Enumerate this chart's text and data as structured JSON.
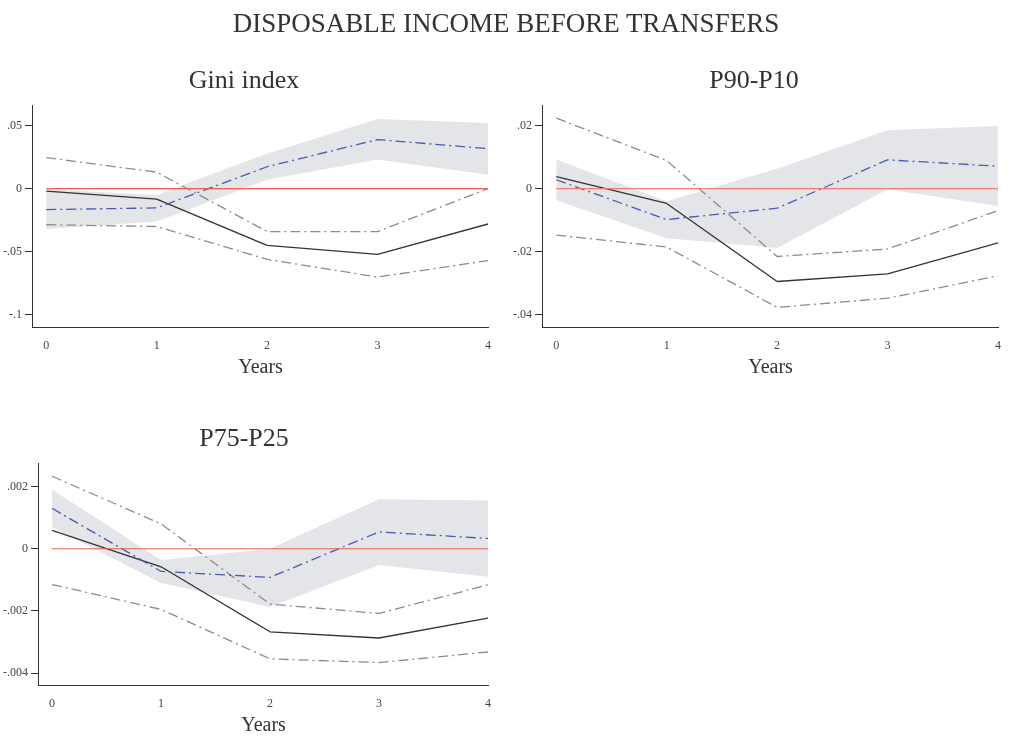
{
  "chart_data": [
    {
      "type": "line",
      "title": "DISPOSABLE INCOME BEFORE TRANSFERS",
      "subtitle": "Gini index",
      "xlabel": "Years",
      "x": [
        0,
        1,
        2,
        3,
        4
      ],
      "xlim": [
        -0.12,
        4
      ],
      "xticks": [
        0,
        1,
        2,
        3,
        4
      ],
      "ylim": [
        -0.11,
        0.066
      ],
      "yticks": [
        {
          "value": -0.1,
          "label": "-.1"
        },
        {
          "value": -0.05,
          "label": "-.05"
        },
        {
          "value": 0,
          "label": "0"
        },
        {
          "value": 0.05,
          "label": ".05"
        }
      ],
      "grid": false,
      "legend": false,
      "marker": "none",
      "ref_lines": [
        {
          "axis": "y",
          "value": 0,
          "color": "#e8604c"
        }
      ],
      "series": [
        {
          "color": "#4a5ab0",
          "line_style": "dashed",
          "values": [
            -0.0166,
            -0.0153,
            0.0173,
            0.0388,
            0.0316
          ],
          "lower": [
            -0.032,
            -0.026,
            0.007,
            0.023,
            0.011
          ],
          "upper": [
            -0.0005,
            -0.005,
            0.0276,
            0.055,
            0.052
          ]
        },
        {
          "color": "#8c8c8c",
          "line_style": "dashed",
          "values": [
            0.0245,
            0.013,
            -0.034,
            -0.034,
            0.0
          ]
        },
        {
          "color": "#8c8c8c",
          "line_style": "dashed",
          "values": [
            -0.0286,
            -0.03,
            -0.056,
            -0.07,
            -0.057
          ]
        },
        {
          "color": "#333333",
          "line_style": "solid",
          "values": [
            -0.002,
            -0.0084,
            -0.045,
            -0.052,
            -0.028
          ]
        }
      ]
    },
    {
      "type": "line",
      "title": "P90-P10",
      "xlabel": "Years",
      "x": [
        0,
        1,
        2,
        3,
        4
      ],
      "xlim": [
        -0.12,
        4
      ],
      "xticks": [
        0,
        1,
        2,
        3,
        4
      ],
      "ylim": [
        -0.044,
        0.0264
      ],
      "yticks": [
        {
          "value": -0.04,
          "label": "-.04"
        },
        {
          "value": -0.02,
          "label": "-.02"
        },
        {
          "value": 0,
          "label": "0"
        },
        {
          "value": 0.02,
          "label": ".02"
        }
      ],
      "grid": false,
      "legend": false,
      "marker": "none",
      "ref_lines": [
        {
          "axis": "y",
          "value": 0,
          "color": "#f08070"
        }
      ],
      "series": [
        {
          "color": "#4a5ab0",
          "line_style": "dashed",
          "values": [
            0.0028,
            -0.0098,
            -0.0062,
            0.0091,
            0.0071
          ],
          "lower": [
            -0.0037,
            -0.0157,
            -0.0188,
            -0.0002,
            -0.0055
          ],
          "upper": [
            0.0092,
            -0.004,
            0.0063,
            0.0185,
            0.0198
          ]
        },
        {
          "color": "#8c8c8c",
          "line_style": "dashed",
          "values": [
            0.0223,
            0.0089,
            -0.0215,
            -0.0191,
            -0.007
          ]
        },
        {
          "color": "#8c8c8c",
          "line_style": "dashed",
          "values": [
            -0.0147,
            -0.0185,
            -0.0376,
            -0.0347,
            -0.0276
          ]
        },
        {
          "color": "#333333",
          "line_style": "solid",
          "values": [
            0.0038,
            -0.0047,
            -0.0294,
            -0.027,
            -0.0172
          ]
        }
      ]
    },
    {
      "type": "line",
      "title": "P75-P25",
      "xlabel": "Years",
      "x": [
        0,
        1,
        2,
        3,
        4
      ],
      "xlim": [
        -0.12,
        4
      ],
      "xticks": [
        0,
        1,
        2,
        3,
        4
      ],
      "ylim": [
        -0.0044,
        0.00275
      ],
      "yticks": [
        {
          "value": -0.004,
          "label": "-.004"
        },
        {
          "value": -0.002,
          "label": "-.002"
        },
        {
          "value": 0,
          "label": "0"
        },
        {
          "value": 0.002,
          "label": ".002"
        }
      ],
      "grid": false,
      "legend": false,
      "marker": "none",
      "ref_lines": [
        {
          "axis": "y",
          "value": 0,
          "color": "#e8604c"
        }
      ],
      "series": [
        {
          "color": "#4a5ab0",
          "line_style": "dashed",
          "values": [
            0.0013,
            -0.00073,
            -0.00092,
            0.00054,
            0.00033
          ],
          "lower": [
            0.0007,
            -0.0011,
            -0.00187,
            -0.00052,
            -0.0009
          ],
          "upper": [
            0.0019,
            -0.00036,
            0.0,
            0.00159,
            0.00155
          ]
        },
        {
          "color": "#8c8c8c",
          "line_style": "dashed",
          "values": [
            0.00233,
            0.0008,
            -0.00178,
            -0.00208,
            -0.00116
          ]
        },
        {
          "color": "#8c8c8c",
          "line_style": "dashed",
          "values": [
            -0.00115,
            -0.00195,
            -0.00354,
            -0.00366,
            -0.00332
          ]
        },
        {
          "color": "#333333",
          "line_style": "solid",
          "values": [
            0.00059,
            -0.00058,
            -0.00267,
            -0.00287,
            -0.00223
          ]
        }
      ]
    }
  ]
}
